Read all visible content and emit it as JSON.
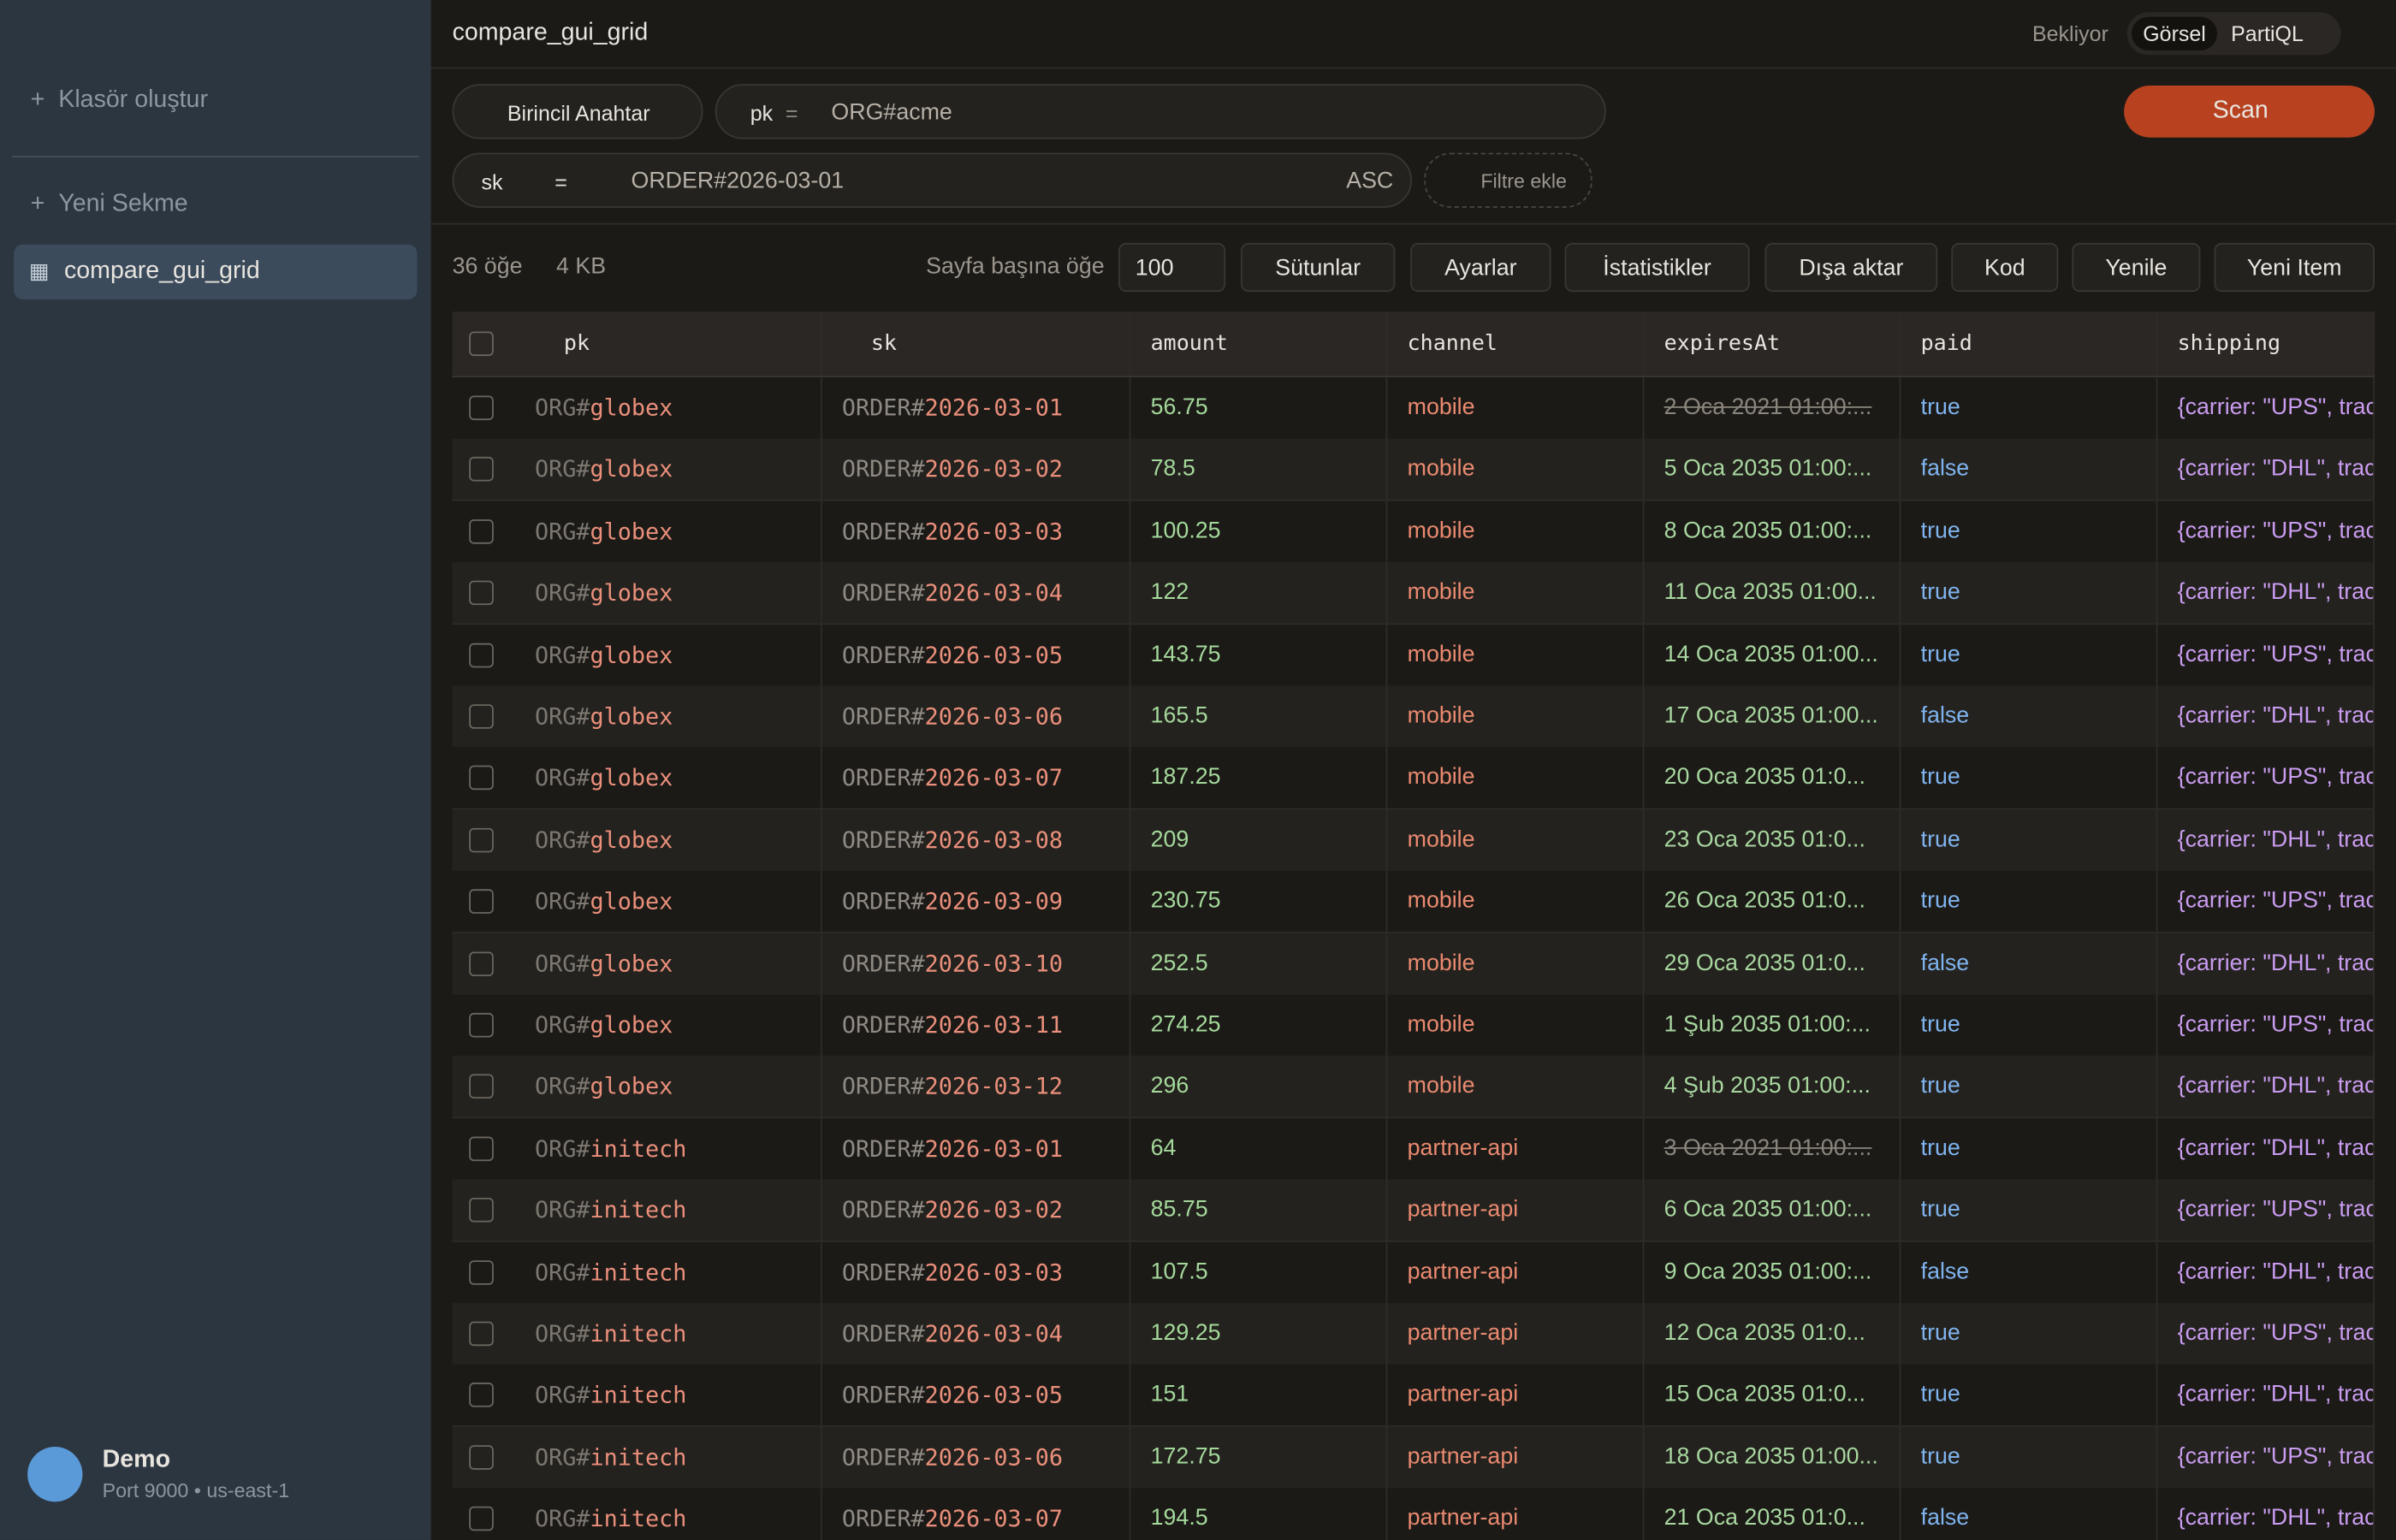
{
  "sidebar": {
    "create_folder": "Klasör oluştur",
    "new_tab": "Yeni Sekme",
    "tabs": [
      "compare_gui_grid"
    ],
    "connection": {
      "name": "Demo",
      "detail": "Port 9000 • us-east-1"
    }
  },
  "header": {
    "title": "compare_gui_grid",
    "status": "Bekliyor",
    "modes": [
      "Görsel",
      "PartiQL"
    ]
  },
  "query": {
    "index": "Birincil Anahtar",
    "pk_label": "pk",
    "pk_op": "=",
    "pk_value": "ORG#acme",
    "sk_label": "sk",
    "sk_op": "=",
    "sk_value": "ORDER#2026-03-01",
    "sort": "ASC",
    "add_filter": "Filtre ekle",
    "action": "Scan"
  },
  "toolbar": {
    "count": "36 öğe",
    "size": "4 KB",
    "per_page_label": "Sayfa başına öğe",
    "per_page": "100",
    "buttons": [
      "Sütunlar",
      "Ayarlar",
      "İstatistikler",
      "Dışa aktar",
      "Kod",
      "Yenile",
      "Yeni Item"
    ]
  },
  "table": {
    "columns": [
      "pk",
      "sk",
      "amount",
      "channel",
      "expiresAt",
      "paid",
      "shipping"
    ],
    "rows": [
      {
        "cells": [
          "ORG#",
          "globex",
          "ORDER#",
          "2026-03-01",
          56.75,
          "mobile",
          "2 Oca 2021 01:00:...",
          "true",
          "{carrier: \"UPS\", trac"
        ],
        "expired": true
      },
      {
        "cells": [
          "ORG#",
          "globex",
          "ORDER#",
          "2026-03-02",
          78.5,
          "mobile",
          "5 Oca 2035 01:00:...",
          "false",
          "{carrier: \"DHL\", trac"
        ]
      },
      {
        "cells": [
          "ORG#",
          "globex",
          "ORDER#",
          "2026-03-03",
          100.25,
          "mobile",
          "8 Oca 2035 01:00:...",
          "true",
          "{carrier: \"UPS\", trac"
        ]
      },
      {
        "cells": [
          "ORG#",
          "globex",
          "ORDER#",
          "2026-03-04",
          122,
          "mobile",
          "11 Oca 2035 01:00...",
          "true",
          "{carrier: \"DHL\", trac"
        ]
      },
      {
        "cells": [
          "ORG#",
          "globex",
          "ORDER#",
          "2026-03-05",
          143.75,
          "mobile",
          "14 Oca 2035 01:00...",
          "true",
          "{carrier: \"UPS\", trac"
        ]
      },
      {
        "cells": [
          "ORG#",
          "globex",
          "ORDER#",
          "2026-03-06",
          165.5,
          "mobile",
          "17 Oca 2035 01:00...",
          "false",
          "{carrier: \"DHL\", trac"
        ]
      },
      {
        "cells": [
          "ORG#",
          "globex",
          "ORDER#",
          "2026-03-07",
          187.25,
          "mobile",
          "20 Oca 2035 01:0...",
          "true",
          "{carrier: \"UPS\", trac"
        ]
      },
      {
        "cells": [
          "ORG#",
          "globex",
          "ORDER#",
          "2026-03-08",
          209,
          "mobile",
          "23 Oca 2035 01:0...",
          "true",
          "{carrier: \"DHL\", trac"
        ]
      },
      {
        "cells": [
          "ORG#",
          "globex",
          "ORDER#",
          "2026-03-09",
          230.75,
          "mobile",
          "26 Oca 2035 01:0...",
          "true",
          "{carrier: \"UPS\", trac"
        ]
      },
      {
        "cells": [
          "ORG#",
          "globex",
          "ORDER#",
          "2026-03-10",
          252.5,
          "mobile",
          "29 Oca 2035 01:0...",
          "false",
          "{carrier: \"DHL\", trac"
        ]
      },
      {
        "cells": [
          "ORG#",
          "globex",
          "ORDER#",
          "2026-03-11",
          274.25,
          "mobile",
          "1 Şub 2035 01:00:...",
          "true",
          "{carrier: \"UPS\", trac"
        ]
      },
      {
        "cells": [
          "ORG#",
          "globex",
          "ORDER#",
          "2026-03-12",
          296,
          "mobile",
          "4 Şub 2035 01:00:...",
          "true",
          "{carrier: \"DHL\", trac"
        ]
      },
      {
        "cells": [
          "ORG#",
          "initech",
          "ORDER#",
          "2026-03-01",
          64,
          "partner-api",
          "3 Oca 2021 01:00:...",
          "true",
          "{carrier: \"DHL\", trac"
        ],
        "expired": true
      },
      {
        "cells": [
          "ORG#",
          "initech",
          "ORDER#",
          "2026-03-02",
          85.75,
          "partner-api",
          "6 Oca 2035 01:00:...",
          "true",
          "{carrier: \"UPS\", trac"
        ]
      },
      {
        "cells": [
          "ORG#",
          "initech",
          "ORDER#",
          "2026-03-03",
          107.5,
          "partner-api",
          "9 Oca 2035 01:00:...",
          "false",
          "{carrier: \"DHL\", trac"
        ]
      },
      {
        "cells": [
          "ORG#",
          "initech",
          "ORDER#",
          "2026-03-04",
          129.25,
          "partner-api",
          "12 Oca 2035 01:0...",
          "true",
          "{carrier: \"UPS\", trac"
        ]
      },
      {
        "cells": [
          "ORG#",
          "initech",
          "ORDER#",
          "2026-03-05",
          151,
          "partner-api",
          "15 Oca 2035 01:0...",
          "true",
          "{carrier: \"DHL\", trac"
        ]
      },
      {
        "cells": [
          "ORG#",
          "initech",
          "ORDER#",
          "2026-03-06",
          172.75,
          "partner-api",
          "18 Oca 2035 01:00...",
          "true",
          "{carrier: \"UPS\", trac"
        ]
      },
      {
        "cells": [
          "ORG#",
          "initech",
          "ORDER#",
          "2026-03-07",
          194.5,
          "partner-api",
          "21 Oca 2035 01:0...",
          "false",
          "{carrier: \"DHL\", trac"
        ]
      }
    ]
  }
}
